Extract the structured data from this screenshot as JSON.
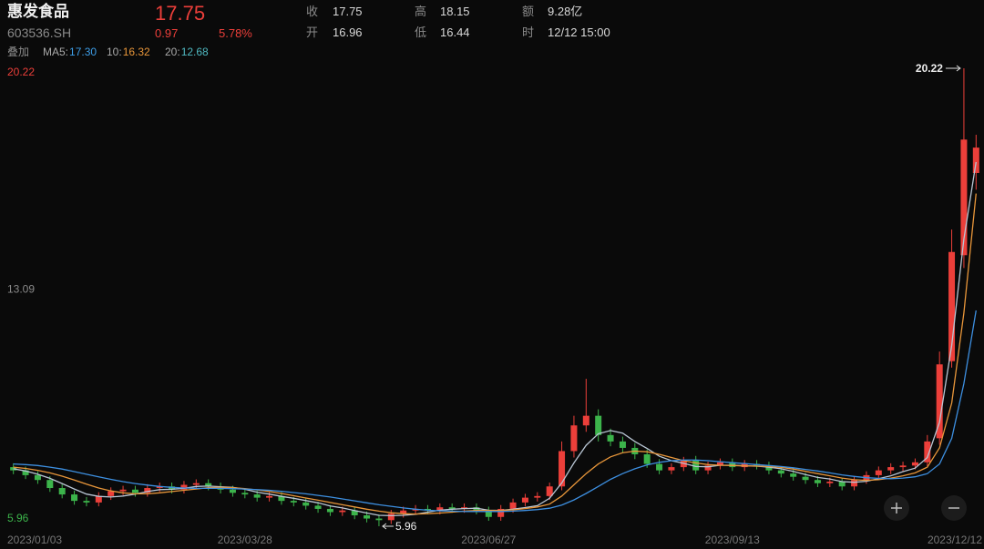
{
  "quote": {
    "name": "惠发食品",
    "code": "603536.SH",
    "price": "17.75",
    "change": "0.97",
    "pct": "5.78%",
    "fields": [
      {
        "label": "收",
        "value": "17.75"
      },
      {
        "label": "高",
        "value": "18.15"
      },
      {
        "label": "额",
        "value": "9.28亿"
      },
      {
        "label": "开",
        "value": "16.96"
      },
      {
        "label": "低",
        "value": "16.44"
      },
      {
        "label": "时",
        "value": "12/12 15:00"
      }
    ],
    "overlay": "叠加"
  },
  "chart_data": {
    "type": "candlestick",
    "categories": [
      "2023/01/03",
      null,
      null,
      null,
      null,
      null,
      null,
      null,
      null,
      null,
      null,
      null,
      null,
      null,
      null,
      null,
      null,
      null,
      null,
      "2023/03/28",
      null,
      null,
      null,
      null,
      null,
      null,
      null,
      null,
      null,
      null,
      null,
      null,
      null,
      null,
      null,
      null,
      null,
      null,
      null,
      "2023/06/27",
      null,
      null,
      null,
      null,
      null,
      null,
      null,
      null,
      null,
      null,
      null,
      null,
      null,
      null,
      null,
      null,
      null,
      null,
      null,
      "2023/09/13",
      null,
      null,
      null,
      null,
      null,
      null,
      null,
      null,
      null,
      null,
      null,
      null,
      null,
      null,
      null,
      null,
      null,
      null,
      null,
      "2023/12/12"
    ],
    "open": [
      7.8,
      7.7,
      7.55,
      7.4,
      7.15,
      6.95,
      6.75,
      6.7,
      6.9,
      7.05,
      7.1,
      7.0,
      7.15,
      7.2,
      7.1,
      7.25,
      7.3,
      7.2,
      7.1,
      7.0,
      6.95,
      6.85,
      6.9,
      6.75,
      6.7,
      6.6,
      6.5,
      6.4,
      6.45,
      6.3,
      6.2,
      6.15,
      6.35,
      6.45,
      6.5,
      6.45,
      6.55,
      6.5,
      6.55,
      6.45,
      6.25,
      6.5,
      6.7,
      6.85,
      6.9,
      7.2,
      8.3,
      9.1,
      9.4,
      8.8,
      8.6,
      8.4,
      8.2,
      7.9,
      7.7,
      7.8,
      8.0,
      7.7,
      7.85,
      7.95,
      7.8,
      7.9,
      7.85,
      7.7,
      7.6,
      7.5,
      7.4,
      7.3,
      7.35,
      7.2,
      7.4,
      7.55,
      7.7,
      7.8,
      7.85,
      7.95,
      8.7,
      11.1,
      14.4,
      16.96
    ],
    "high": [
      7.92,
      7.82,
      7.67,
      7.52,
      7.27,
      7.07,
      6.87,
      7.02,
      7.17,
      7.22,
      7.22,
      7.27,
      7.32,
      7.32,
      7.37,
      7.42,
      7.42,
      7.32,
      7.22,
      7.12,
      7.07,
      7.02,
      7.02,
      6.87,
      6.82,
      6.72,
      6.62,
      6.57,
      6.57,
      6.42,
      6.32,
      6.47,
      6.57,
      6.62,
      6.62,
      6.67,
      6.67,
      6.67,
      6.67,
      6.57,
      6.62,
      6.82,
      6.97,
      7.02,
      7.32,
      8.6,
      9.4,
      10.55,
      9.6,
      9.0,
      8.75,
      8.55,
      8.35,
      8.05,
      7.92,
      8.12,
      8.15,
      7.97,
      8.07,
      8.07,
      8.02,
      8.02,
      7.97,
      7.82,
      7.72,
      7.62,
      7.52,
      7.47,
      7.47,
      7.52,
      7.67,
      7.82,
      7.92,
      7.97,
      8.07,
      8.8,
      11.4,
      15.2,
      20.22,
      18.15
    ],
    "low": [
      7.58,
      7.43,
      7.28,
      7.03,
      6.83,
      6.63,
      6.58,
      6.58,
      6.78,
      6.93,
      6.88,
      6.88,
      7.03,
      6.98,
      6.98,
      7.13,
      7.08,
      6.98,
      6.88,
      6.83,
      6.73,
      6.73,
      6.63,
      6.58,
      6.48,
      6.38,
      6.28,
      6.28,
      6.18,
      6.08,
      5.96,
      6.03,
      6.23,
      6.33,
      6.33,
      6.33,
      6.38,
      6.38,
      6.33,
      6.13,
      6.13,
      6.38,
      6.58,
      6.73,
      6.78,
      7.08,
      8.1,
      8.9,
      8.6,
      8.45,
      8.25,
      8.05,
      7.78,
      7.58,
      7.58,
      7.68,
      7.58,
      7.58,
      7.73,
      7.68,
      7.68,
      7.73,
      7.58,
      7.48,
      7.38,
      7.28,
      7.18,
      7.18,
      7.08,
      7.08,
      7.28,
      7.43,
      7.58,
      7.68,
      7.73,
      7.83,
      8.5,
      10.9,
      14.0,
      16.44
    ],
    "close": [
      7.7,
      7.55,
      7.4,
      7.15,
      6.95,
      6.75,
      6.7,
      6.9,
      7.05,
      7.1,
      7.0,
      7.15,
      7.2,
      7.1,
      7.25,
      7.3,
      7.2,
      7.1,
      7.0,
      6.95,
      6.85,
      6.9,
      6.75,
      6.7,
      6.6,
      6.5,
      6.4,
      6.45,
      6.3,
      6.2,
      6.15,
      6.35,
      6.45,
      6.5,
      6.45,
      6.55,
      6.5,
      6.55,
      6.45,
      6.25,
      6.5,
      6.7,
      6.85,
      6.9,
      7.2,
      8.3,
      9.1,
      9.4,
      8.8,
      8.6,
      8.4,
      8.2,
      7.9,
      7.7,
      7.8,
      8.0,
      7.7,
      7.85,
      7.95,
      7.8,
      7.9,
      7.85,
      7.7,
      7.6,
      7.5,
      7.4,
      7.3,
      7.35,
      7.2,
      7.4,
      7.55,
      7.7,
      7.8,
      7.85,
      7.95,
      8.6,
      11.0,
      14.5,
      18.0,
      17.75
    ],
    "up_color": "#ec3f3a",
    "down_color": "#3cb44b",
    "series": [
      {
        "name": "MA5:",
        "color": "#b9c6d4",
        "label_color": "#3d9ee8",
        "last_label": "17.30",
        "values": [
          7.75,
          7.68,
          7.58,
          7.45,
          7.29,
          7.12,
          6.96,
          6.89,
          6.87,
          6.9,
          6.96,
          7.04,
          7.1,
          7.11,
          7.14,
          7.2,
          7.21,
          7.19,
          7.17,
          7.11,
          7.02,
          6.96,
          6.89,
          6.83,
          6.76,
          6.69,
          6.59,
          6.53,
          6.45,
          6.37,
          6.3,
          6.29,
          6.3,
          6.33,
          6.4,
          6.46,
          6.49,
          6.51,
          6.52,
          6.46,
          6.45,
          6.49,
          6.54,
          6.6,
          6.83,
          7.31,
          7.93,
          8.48,
          8.84,
          8.94,
          8.86,
          8.6,
          8.38,
          8.14,
          8.0,
          7.92,
          7.82,
          7.81,
          7.86,
          7.86,
          7.84,
          7.83,
          7.8,
          7.75,
          7.67,
          7.57,
          7.48,
          7.43,
          7.35,
          7.33,
          7.36,
          7.44,
          7.53,
          7.66,
          7.77,
          8.1,
          9.2,
          11.6,
          14.9,
          17.3
        ]
      },
      {
        "name": "10:",
        "color": "#e8963a",
        "label_color": "#e8963a",
        "last_label": "16.32",
        "values": [
          7.8,
          7.76,
          7.7,
          7.62,
          7.52,
          7.4,
          7.27,
          7.15,
          7.06,
          7.0,
          6.97,
          6.97,
          7.0,
          7.04,
          7.08,
          7.12,
          7.16,
          7.17,
          7.16,
          7.13,
          7.09,
          7.04,
          6.98,
          6.91,
          6.84,
          6.77,
          6.7,
          6.63,
          6.56,
          6.49,
          6.43,
          6.38,
          6.35,
          6.34,
          6.35,
          6.37,
          6.4,
          6.43,
          6.45,
          6.45,
          6.45,
          6.47,
          6.51,
          6.56,
          6.65,
          6.9,
          7.25,
          7.6,
          7.9,
          8.12,
          8.25,
          8.3,
          8.28,
          8.2,
          8.1,
          8.0,
          7.93,
          7.88,
          7.86,
          7.85,
          7.84,
          7.83,
          7.82,
          7.79,
          7.74,
          7.67,
          7.6,
          7.53,
          7.46,
          7.41,
          7.39,
          7.41,
          7.46,
          7.53,
          7.62,
          7.8,
          8.4,
          9.8,
          12.6,
          16.32
        ]
      },
      {
        "name": "20:",
        "color": "#3d8fe0",
        "label_color": "#4fb8c0",
        "last_label": "12.68",
        "values": [
          7.9,
          7.88,
          7.85,
          7.8,
          7.74,
          7.66,
          7.58,
          7.5,
          7.42,
          7.35,
          7.29,
          7.24,
          7.2,
          7.17,
          7.15,
          7.14,
          7.14,
          7.14,
          7.13,
          7.12,
          7.1,
          7.08,
          7.05,
          7.01,
          6.97,
          6.92,
          6.87,
          6.81,
          6.75,
          6.69,
          6.63,
          6.58,
          6.53,
          6.49,
          6.46,
          6.44,
          6.43,
          6.42,
          6.42,
          6.42,
          6.42,
          6.43,
          6.45,
          6.48,
          6.52,
          6.62,
          6.78,
          6.98,
          7.2,
          7.42,
          7.6,
          7.75,
          7.87,
          7.95,
          8.0,
          8.02,
          8.02,
          8.0,
          7.97,
          7.94,
          7.91,
          7.88,
          7.85,
          7.82,
          7.78,
          7.73,
          7.68,
          7.62,
          7.56,
          7.51,
          7.47,
          7.45,
          7.44,
          7.46,
          7.5,
          7.6,
          7.9,
          8.7,
          10.4,
          12.68
        ]
      }
    ],
    "ylim": [
      5.96,
      20.22
    ],
    "yticks": [
      5.96,
      13.09,
      20.22
    ],
    "grid": false
  }
}
